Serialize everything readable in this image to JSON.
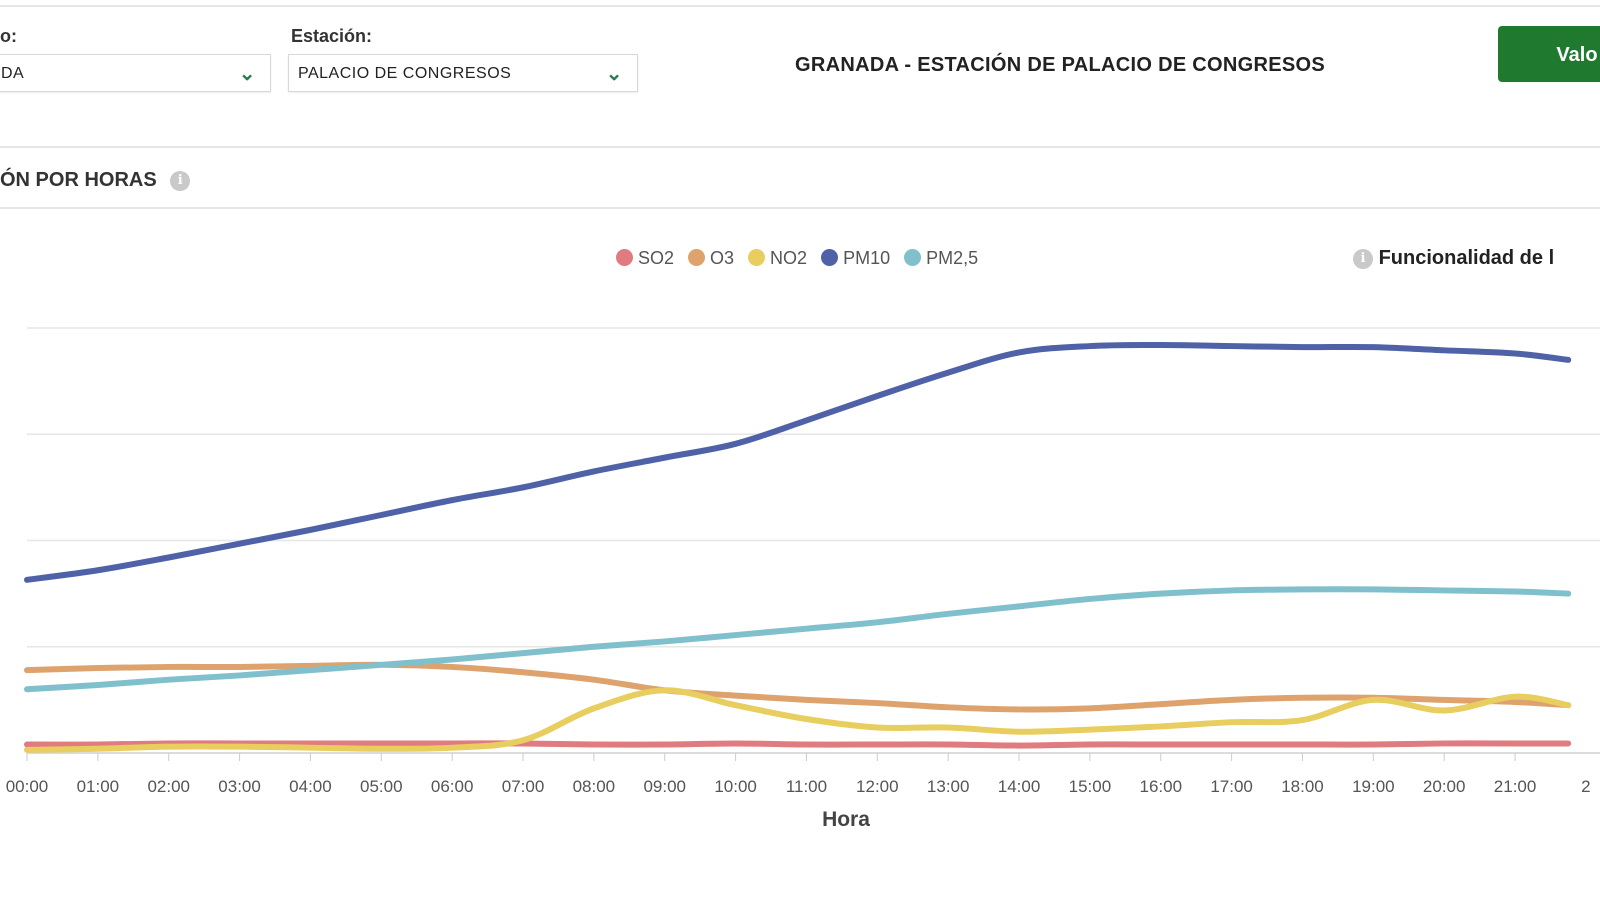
{
  "filters": {
    "municipio_label": "o:",
    "municipio_value": "DA",
    "estacion_label": "Estación:",
    "estacion_value": "PALACIO DE CONGRESOS"
  },
  "header": {
    "title": "GRANADA - ESTACIÓN DE PALACIO DE CONGRESOS",
    "button_label": "Valo"
  },
  "section": {
    "title": "ÓN POR HORAS",
    "info_icon": "info-icon"
  },
  "functionality_note": "Funcionalidad de l",
  "colors": {
    "accent": "#1f7a30",
    "chevron": "#2e7d4f"
  },
  "chart_data": {
    "type": "line",
    "xlabel": "Hora",
    "ylabel": "",
    "ylim": [
      0,
      4
    ],
    "grid": true,
    "legend_placement": "top-center",
    "categories": [
      "00:00",
      "01:00",
      "02:00",
      "03:00",
      "04:00",
      "05:00",
      "06:00",
      "07:00",
      "08:00",
      "09:00",
      "10:00",
      "11:00",
      "12:00",
      "13:00",
      "14:00",
      "15:00",
      "16:00",
      "17:00",
      "18:00",
      "19:00",
      "20:00",
      "21:00",
      "2"
    ],
    "series": [
      {
        "name": "SO2",
        "color": "#e07b7f",
        "values": [
          0.08,
          0.08,
          0.09,
          0.09,
          0.09,
          0.09,
          0.09,
          0.09,
          0.08,
          0.08,
          0.09,
          0.08,
          0.08,
          0.08,
          0.07,
          0.08,
          0.08,
          0.08,
          0.08,
          0.08,
          0.09,
          0.09,
          0.09
        ]
      },
      {
        "name": "O3",
        "color": "#dea26d",
        "values": [
          0.78,
          0.8,
          0.81,
          0.81,
          0.82,
          0.83,
          0.81,
          0.76,
          0.69,
          0.59,
          0.54,
          0.5,
          0.47,
          0.43,
          0.41,
          0.42,
          0.46,
          0.5,
          0.52,
          0.52,
          0.5,
          0.48,
          0.45
        ]
      },
      {
        "name": "NO2",
        "color": "#e8cd5f",
        "values": [
          0.03,
          0.04,
          0.06,
          0.06,
          0.05,
          0.04,
          0.05,
          0.12,
          0.42,
          0.59,
          0.45,
          0.32,
          0.24,
          0.24,
          0.2,
          0.22,
          0.25,
          0.29,
          0.31,
          0.5,
          0.4,
          0.53,
          0.45
        ]
      },
      {
        "name": "PM10",
        "color": "#4f62a8",
        "values": [
          1.63,
          1.72,
          1.84,
          1.97,
          2.1,
          2.24,
          2.38,
          2.5,
          2.65,
          2.78,
          2.91,
          3.13,
          3.36,
          3.58,
          3.77,
          3.83,
          3.84,
          3.83,
          3.82,
          3.82,
          3.79,
          3.76,
          3.7
        ]
      },
      {
        "name": "PM2,5",
        "color": "#7fc0cc",
        "values": [
          0.6,
          0.64,
          0.69,
          0.73,
          0.78,
          0.83,
          0.88,
          0.94,
          1.0,
          1.05,
          1.11,
          1.17,
          1.23,
          1.31,
          1.38,
          1.45,
          1.5,
          1.53,
          1.54,
          1.54,
          1.53,
          1.52,
          1.5
        ]
      }
    ]
  }
}
